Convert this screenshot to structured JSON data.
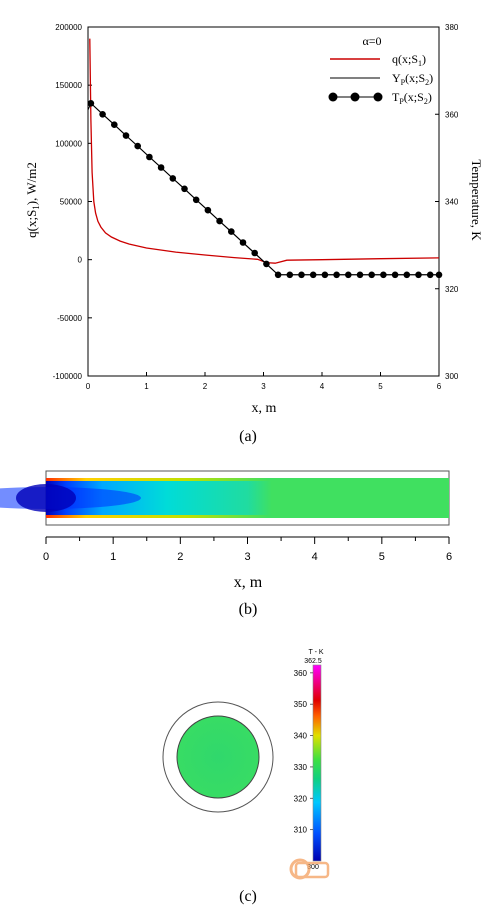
{
  "chart_data": [
    {
      "type": "line",
      "panel_label": "(a)",
      "xlabel_var": "x",
      "xlabel_unit": ", m",
      "ylabel_main": "q(x;S",
      "ylabel_sub": "1",
      "ylabel_tail": "), W/m2",
      "y2label": "Temperature, K",
      "xlim": [
        0,
        6
      ],
      "ylim": [
        -100000,
        200000
      ],
      "y2lim": [
        300,
        380
      ],
      "xticks": [
        "0",
        "1",
        "2",
        "3",
        "4",
        "5",
        "6"
      ],
      "yticks": [
        "-100000",
        "-50000",
        "0",
        "50000",
        "100000",
        "150000",
        "200000"
      ],
      "y2ticks": [
        "300",
        "320",
        "340",
        "360",
        "380"
      ],
      "legend_title": "α=0",
      "legend_placement": "top-right",
      "series": [
        {
          "label_main": "q(x;S",
          "label_sub": "1",
          "label_tail": ")",
          "axis": "left",
          "color": "#cc0000",
          "marker": "none",
          "x": [
            0.03,
            0.05,
            0.07,
            0.1,
            0.13,
            0.17,
            0.22,
            0.3,
            0.4,
            0.55,
            0.7,
            1.0,
            1.5,
            2.0,
            2.5,
            2.9,
            3.05,
            3.2,
            3.4,
            4.0,
            5.0,
            6.0
          ],
          "y": [
            190000,
            120000,
            75000,
            50000,
            40000,
            33000,
            28000,
            23000,
            19500,
            16000,
            13500,
            10000,
            6500,
            4000,
            1800,
            300,
            -2500,
            -3000,
            -500,
            0,
            800,
            1500
          ]
        },
        {
          "label_main": "Y",
          "label_sub_p": "P",
          "label_mid": "(x;S",
          "label_sub": "2",
          "label_tail": ")",
          "axis": "right",
          "color": "#000000",
          "marker": "none",
          "x": [
            0.0,
            0.05,
            3.25,
            6.0
          ],
          "y": [
            361,
            362.5,
            323.2,
            323.2
          ]
        },
        {
          "label_main": "T",
          "label_sub_p": "P",
          "label_mid": "(x;S",
          "label_sub": "2",
          "label_tail": ")",
          "axis": "right",
          "color": "#000000",
          "marker": "circle",
          "x": [
            0.05,
            0.25,
            0.45,
            0.65,
            0.85,
            1.05,
            1.25,
            1.45,
            1.65,
            1.85,
            2.05,
            2.25,
            2.45,
            2.65,
            2.85,
            3.05,
            3.25,
            3.45,
            3.65,
            3.85,
            4.05,
            4.25,
            4.45,
            4.65,
            4.85,
            5.05,
            5.25,
            5.45,
            5.65,
            5.85,
            6.0
          ],
          "y": [
            362.5,
            360.0,
            357.6,
            355.1,
            352.7,
            350.2,
            347.8,
            345.3,
            342.9,
            340.4,
            338.0,
            335.5,
            333.1,
            330.6,
            328.2,
            325.7,
            323.2,
            323.2,
            323.2,
            323.2,
            323.2,
            323.2,
            323.2,
            323.2,
            323.2,
            323.2,
            323.2,
            323.2,
            323.2,
            323.2,
            323.2
          ]
        }
      ]
    },
    {
      "type": "heatmap",
      "panel_label": "(b)",
      "xlabel_var": "x",
      "xlabel_unit": ", m",
      "xlim": [
        0,
        6
      ],
      "xticks": [
        "0",
        "1",
        "2",
        "3",
        "4",
        "5",
        "6"
      ]
    },
    {
      "type": "heatmap",
      "panel_label": "(c)",
      "colorbar_title": "T - K",
      "colorbar_max_label": "362.5",
      "colorbar_min_label": "300",
      "colorbar_range": [
        300,
        362.5
      ],
      "colorbar_ticks": [
        "360",
        "350",
        "340",
        "330",
        "320",
        "310"
      ],
      "colors": [
        "#0000b0",
        "#0050ff",
        "#00c8ff",
        "#10d080",
        "#40e040",
        "#e0e000",
        "#ff6000",
        "#e00000",
        "#ff00ff"
      ]
    }
  ]
}
